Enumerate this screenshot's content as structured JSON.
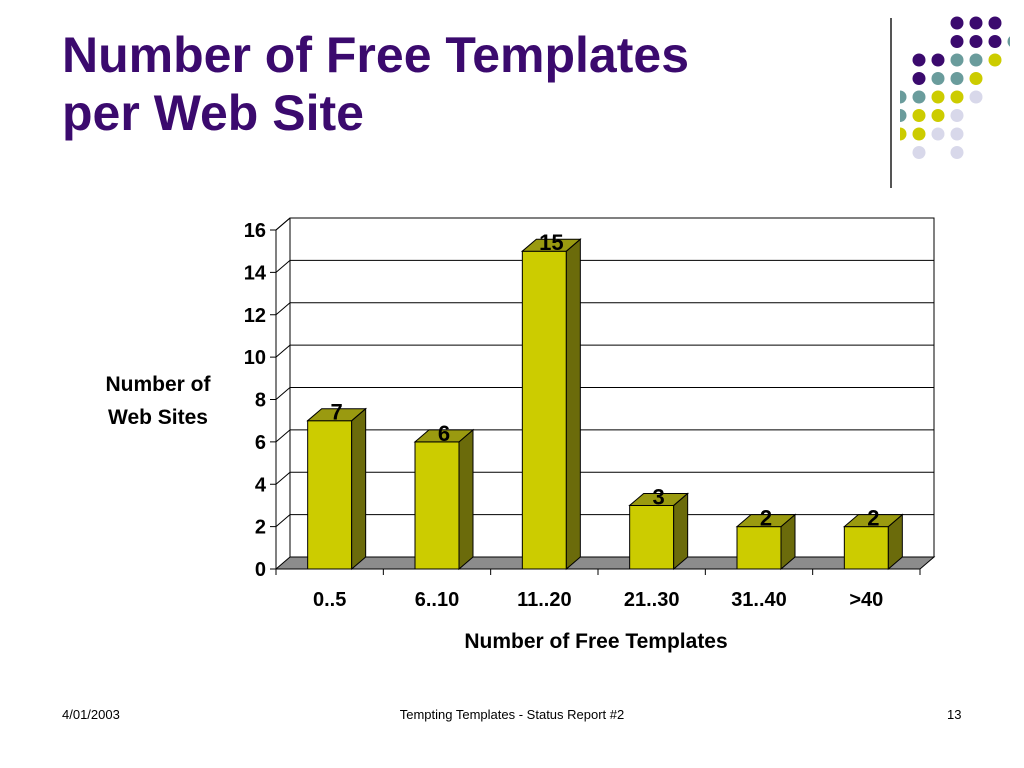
{
  "slide": {
    "title_lines": [
      "Number of Free Templates",
      "per Web Site"
    ]
  },
  "chart_data": {
    "type": "bar",
    "categories": [
      "0..5",
      "6..10",
      "11..20",
      "21..30",
      "31..40",
      ">40"
    ],
    "values": [
      7,
      6,
      15,
      3,
      2,
      2
    ],
    "data_labels": [
      "7",
      "6",
      "15",
      "3",
      "2",
      "2"
    ],
    "title": "",
    "xlabel": "Number of Free Templates",
    "ylabel_lines": [
      "Number of",
      "Web Sites"
    ],
    "ylim": [
      0,
      16
    ],
    "yticks": [
      0,
      2,
      4,
      6,
      8,
      10,
      12,
      14,
      16
    ],
    "grid": true,
    "three_d": true,
    "colors": {
      "bar_front": "#cccc00",
      "bar_side": "#6b6b0b",
      "bar_top": "#9a9a10",
      "floor": "#8c8c8c",
      "grid": "#000000"
    }
  },
  "decoration": {
    "colors": {
      "purple": "#3b0a6e",
      "teal": "#6a9c9c",
      "yellow": "#cccc00",
      "lavender": "#d8d8ea"
    }
  },
  "footer": {
    "date": "4/01/2003",
    "center": "Tempting Templates - Status Report #2",
    "page": "13"
  },
  "theme": {
    "title_color": "#3b0a6e"
  }
}
